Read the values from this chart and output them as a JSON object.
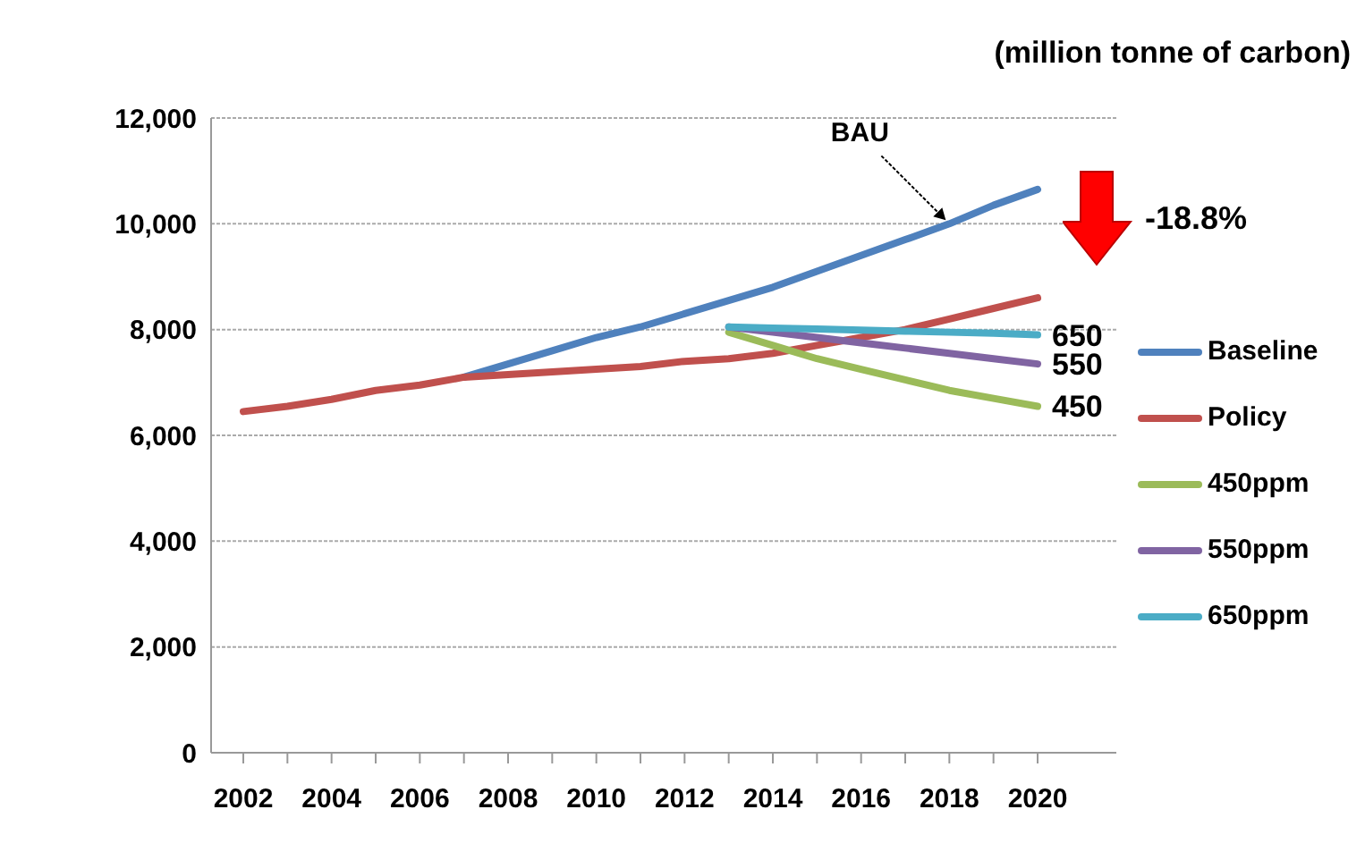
{
  "chart_data": {
    "type": "line",
    "ylabel": "(million tonne of carbon)",
    "categories": [
      "2002",
      null,
      "2004",
      null,
      "2006",
      null,
      "2008",
      null,
      "2010",
      null,
      "2012",
      null,
      "2014",
      null,
      "2016",
      null,
      "2018",
      null,
      "2020"
    ],
    "series": [
      {
        "name": "Baseline",
        "color": "#4f81bd",
        "values": [
          null,
          null,
          null,
          null,
          null,
          7100,
          7350,
          7600,
          7850,
          8050,
          8300,
          8550,
          8800,
          9100,
          9400,
          9700,
          10000,
          10350,
          10650
        ]
      },
      {
        "name": "Policy",
        "color": "#c0504d",
        "values": [
          6450,
          6550,
          6680,
          6850,
          6950,
          7100,
          7150,
          7200,
          7250,
          7300,
          7400,
          7450,
          7550,
          7700,
          7850,
          8000,
          8200,
          8400,
          8600
        ]
      },
      {
        "name": "450ppm",
        "color": "#9bbb59",
        "values": [
          null,
          null,
          null,
          null,
          null,
          null,
          null,
          null,
          null,
          null,
          null,
          7950,
          7700,
          7450,
          7250,
          7050,
          6850,
          6700,
          6550
        ]
      },
      {
        "name": "550ppm",
        "color": "#8064a2",
        "values": [
          null,
          null,
          null,
          null,
          null,
          null,
          null,
          null,
          null,
          null,
          null,
          8050,
          7950,
          7850,
          7750,
          7650,
          7550,
          7450,
          7350
        ]
      },
      {
        "name": "650ppm",
        "color": "#4bacc6",
        "values": [
          null,
          null,
          null,
          null,
          null,
          null,
          null,
          null,
          null,
          null,
          null,
          8050,
          8030,
          8010,
          7990,
          7970,
          7950,
          7930,
          7900
        ]
      }
    ],
    "ylim": [
      0,
      12000
    ],
    "yticks": [
      0,
      {
        "value": 2000,
        "label": "2,000"
      },
      {
        "value": 4000,
        "label": "4,000"
      },
      {
        "value": 6000,
        "label": "6,000"
      },
      {
        "value": 8000,
        "label": "8,000"
      },
      {
        "value": 10000,
        "label": "10,000"
      },
      {
        "value": 12000,
        "label": "12,000"
      }
    ],
    "grid": "y",
    "legend": "right",
    "marker": "none",
    "line_style": "solid",
    "annotations": [
      {
        "text": "BAU",
        "x": "2018",
        "y": 10000
      },
      "-18.8%",
      {
        "text": "650",
        "x": "2020",
        "y": 7900
      },
      {
        "text": "550",
        "x": "2020",
        "y": 7350
      },
      {
        "text": "450",
        "x": "2020",
        "y": 6550
      }
    ]
  }
}
